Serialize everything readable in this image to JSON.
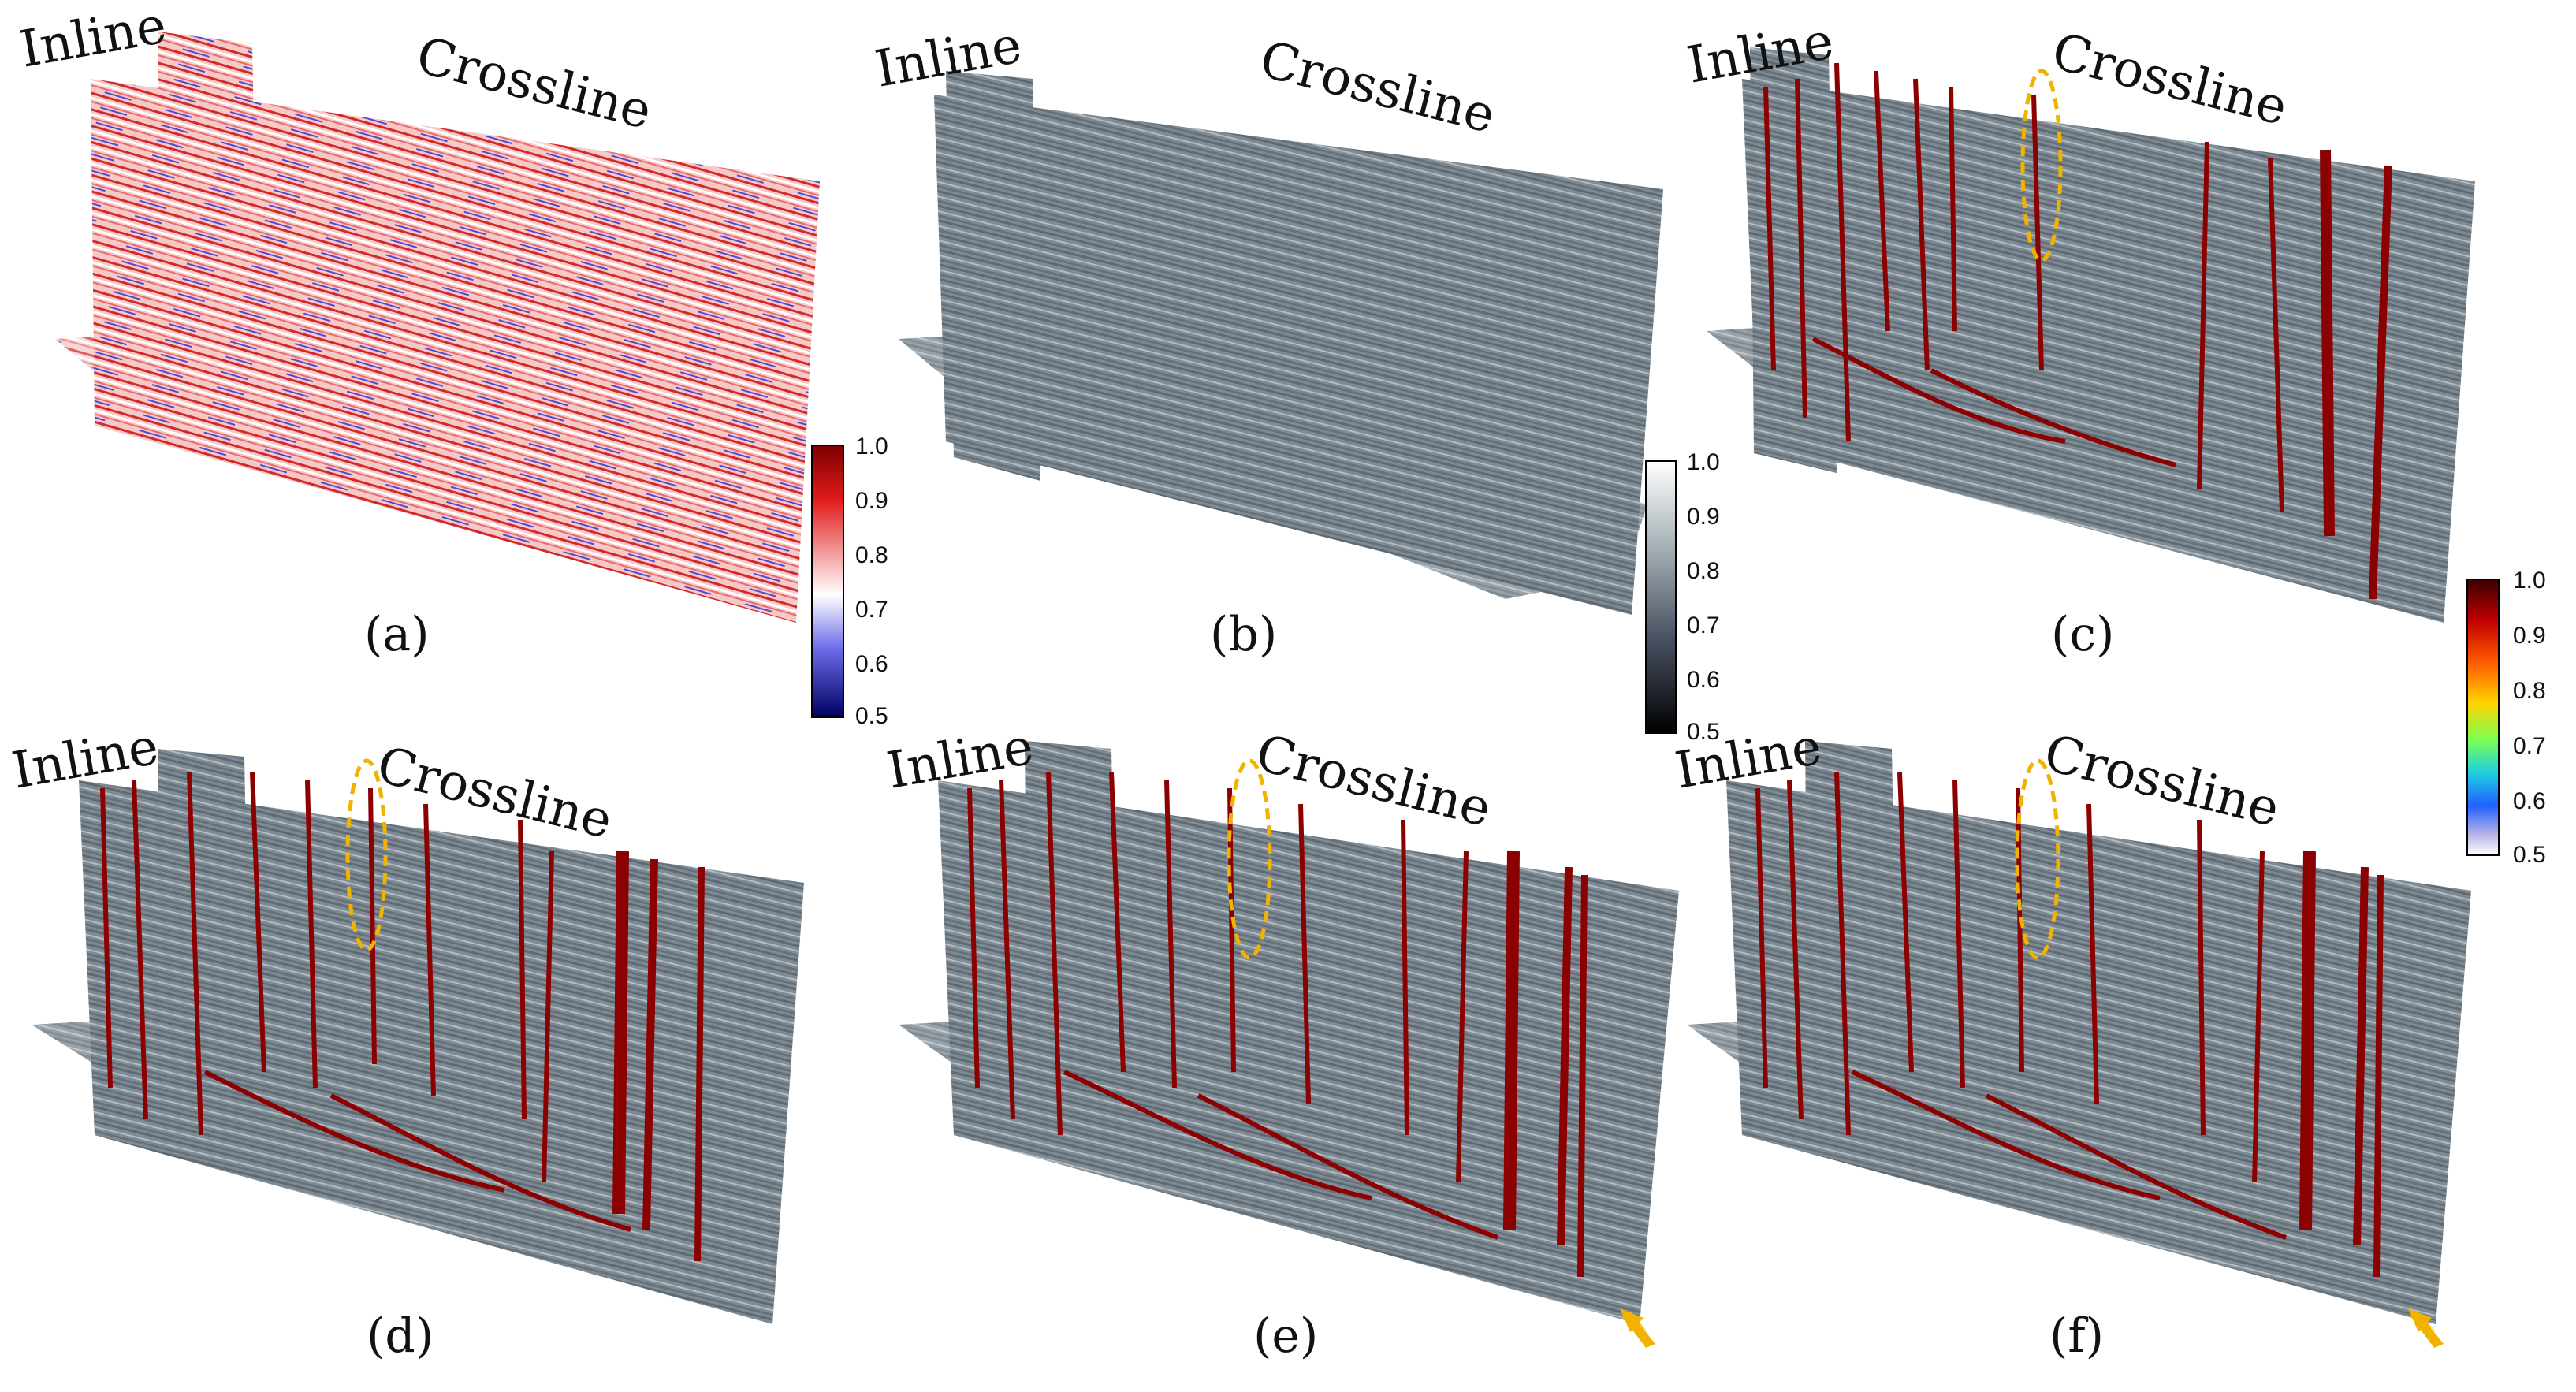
{
  "panels": [
    {
      "id": "a",
      "caption": "(a)",
      "inline_label": "Inline",
      "crossline_label": "Crossline",
      "style": "seismic-red-blue"
    },
    {
      "id": "b",
      "caption": "(b)",
      "inline_label": "Inline",
      "crossline_label": "Crossline",
      "style": "grey"
    },
    {
      "id": "c",
      "caption": "(c)",
      "inline_label": "Inline",
      "crossline_label": "Crossline",
      "style": "grey-faults",
      "highlight_ellipse": true
    },
    {
      "id": "d",
      "caption": "(d)",
      "inline_label": "Inline",
      "crossline_label": "Crossline",
      "style": "grey-faults",
      "highlight_ellipse": true
    },
    {
      "id": "e",
      "caption": "(e)",
      "inline_label": "Inline",
      "crossline_label": "Crossline",
      "style": "grey-faults",
      "highlight_ellipse": true,
      "arrow": true
    },
    {
      "id": "f",
      "caption": "(f)",
      "inline_label": "Inline",
      "crossline_label": "Crossline",
      "style": "grey-faults",
      "highlight_ellipse": true,
      "arrow": true
    }
  ],
  "colorbars": [
    {
      "id": "seismic",
      "ticks": [
        "1.0",
        "0.9",
        "0.8",
        "0.7",
        "0.6",
        "0.5"
      ],
      "colors": [
        "#7a0000",
        "#e21a1a",
        "#f7b0b0",
        "#ffffff",
        "#8a8af0",
        "#0a0a9a",
        "#000060"
      ]
    },
    {
      "id": "grey",
      "ticks": [
        "1.0",
        "0.9",
        "0.8",
        "0.7",
        "0.6",
        "0.5"
      ],
      "colors": [
        "#ffffff",
        "#c8d2d4",
        "#8f9aa3",
        "#505866",
        "#1a1c24",
        "#000000"
      ]
    },
    {
      "id": "jet",
      "ticks": [
        "1.0",
        "0.9",
        "0.8",
        "0.7",
        "0.6",
        "0.5"
      ],
      "colors": [
        "#3a0000",
        "#c00000",
        "#ff5a00",
        "#ffd400",
        "#7cff50",
        "#20d0e0",
        "#2060ff",
        "#b0b0e8",
        "#ffffff"
      ]
    }
  ],
  "colors": {
    "fault": "#8b0000",
    "highlight": "#f0b400",
    "grey_volume": "#7f8b94",
    "seismic_volume": "#f2b6b6"
  }
}
